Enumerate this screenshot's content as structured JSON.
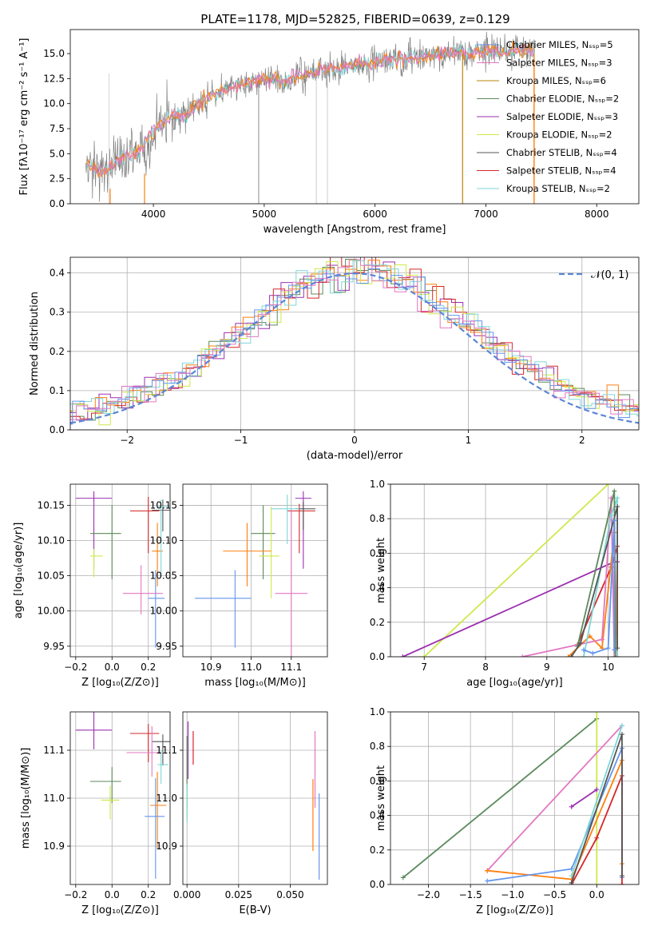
{
  "figure": {
    "title": "PLATE=1178, MJD=52825, FIBERID=0639, z=0.129",
    "colors": [
      "#6495ed",
      "#ff7f0e",
      "#5c8a5c",
      "#d62728",
      "#9b30b0",
      "#8c564b",
      "#e377c2",
      "#555555",
      "#cde94a",
      "#7fd6d6"
    ]
  },
  "chart_data": [
    {
      "id": "spectrum",
      "type": "line",
      "xlabel": "wavelength [Angstrom, rest frame]",
      "ylabel": "Flux [fλ10⁻¹⁷ erg cm⁻² s⁻¹ A⁻¹]",
      "xlim": [
        3250,
        8380
      ],
      "ylim": [
        0,
        17.4
      ],
      "xticks": [
        "4000",
        "5000",
        "6000",
        "7000",
        "8000"
      ],
      "yticks": [
        "0.0",
        "2.5",
        "5.0",
        "7.5",
        "10.0",
        "12.5",
        "15.0"
      ],
      "legend_location": "upper right",
      "series": [
        {
          "name": "Chabrier MILES, Nₛₛₚ=5",
          "color": "#6495ed"
        },
        {
          "name": "Salpeter MILES, Nₛₛₚ=3",
          "color": "#e377c2"
        },
        {
          "name": "Kroupa MILES, Nₛₛₚ=6",
          "color": "#b8860b"
        },
        {
          "name": "Chabrier ELODIE, Nₛₛₚ=2",
          "color": "#5c8a5c"
        },
        {
          "name": "Salpeter ELODIE, Nₛₛₚ=3",
          "color": "#9b30b0"
        },
        {
          "name": "Kroupa ELODIE, Nₛₛₚ=2",
          "color": "#cde94a"
        },
        {
          "name": "Chabrier STELIB, Nₛₛₚ=4",
          "color": "#555555"
        },
        {
          "name": "Salpeter STELIB, Nₛₛₚ=4",
          "color": "#d62728"
        },
        {
          "name": "Kroupa STELIB, Nₛₛₚ=2",
          "color": "#7fd6d6"
        }
      ],
      "data_points": [
        [
          3400,
          3.8
        ],
        [
          3500,
          3.2
        ],
        [
          3600,
          3.4
        ],
        [
          3700,
          4.3
        ],
        [
          3800,
          4.9
        ],
        [
          3900,
          5.6
        ],
        [
          4000,
          7.4
        ],
        [
          4100,
          8.2
        ],
        [
          4200,
          9.0
        ],
        [
          4300,
          8.7
        ],
        [
          4400,
          10.0
        ],
        [
          4500,
          10.6
        ],
        [
          4600,
          11.2
        ],
        [
          4700,
          11.6
        ],
        [
          4800,
          11.9
        ],
        [
          4900,
          12.2
        ],
        [
          5000,
          12.4
        ],
        [
          5100,
          12.6
        ],
        [
          5200,
          12.3
        ],
        [
          5300,
          12.8
        ],
        [
          5400,
          13.0
        ],
        [
          5500,
          13.2
        ],
        [
          5600,
          13.5
        ],
        [
          5700,
          13.6
        ],
        [
          5800,
          13.8
        ],
        [
          5900,
          14.0
        ],
        [
          6000,
          14.2
        ],
        [
          6100,
          14.3
        ],
        [
          6200,
          14.4
        ],
        [
          6300,
          14.5
        ],
        [
          6400,
          14.6
        ],
        [
          6500,
          14.8
        ],
        [
          6600,
          15.0
        ],
        [
          6700,
          15.1
        ],
        [
          6800,
          15.0
        ],
        [
          6900,
          15.2
        ],
        [
          7000,
          15.2
        ],
        [
          7100,
          15.3
        ],
        [
          7200,
          15.1
        ],
        [
          7300,
          15.4
        ],
        [
          7400,
          15.3
        ]
      ]
    },
    {
      "id": "residuals",
      "type": "step",
      "xlabel": "(data-model)/error",
      "ylabel": "Normed distribution",
      "xlim": [
        -2.5,
        2.5
      ],
      "ylim": [
        0,
        0.44
      ],
      "xticks": [
        "−2",
        "−1",
        "0",
        "1",
        "2"
      ],
      "yticks": [
        "0.0",
        "0.1",
        "0.2",
        "0.3",
        "0.4"
      ],
      "legend": "𝒩(0, 1)"
    },
    {
      "id": "age-vs-Z",
      "type": "errorbar",
      "xlabel": "Z [log₁₀(Z/Z⊙)]",
      "ylabel": "age  [log₁₀(age/yr)]",
      "xlim": [
        -0.23,
        0.32
      ],
      "ylim": [
        9.935,
        10.18
      ],
      "xticks": [
        "−0.2",
        "0.0",
        "0.2"
      ],
      "yticks": [
        "9.95",
        "10.00",
        "10.05",
        "10.10",
        "10.15"
      ]
    },
    {
      "id": "age-vs-mass",
      "type": "errorbar",
      "xlabel": "mass [log₁₀(M/M⊙)]",
      "xlim": [
        10.83,
        11.19
      ],
      "ylim": [
        9.935,
        10.18
      ],
      "xticks": [
        "10.9",
        "11.0",
        "11.1"
      ],
      "yticks": [
        "9.95",
        "10.00",
        "10.05",
        "10.10",
        "10.15"
      ]
    },
    {
      "id": "weight-vs-age",
      "type": "line",
      "xlabel": "age  [log₁₀(age/yr)]",
      "ylabel": "mass weight",
      "xlim": [
        6.45,
        10.5
      ],
      "ylim": [
        0,
        1
      ],
      "xticks": [
        "7",
        "8",
        "9",
        "10"
      ],
      "yticks": [
        "0.0",
        "0.2",
        "0.4",
        "0.6",
        "0.8",
        "1.0"
      ]
    },
    {
      "id": "mass-vs-Z",
      "type": "errorbar",
      "xlabel": "Z [log₁₀(Z/Z⊙)]",
      "ylabel": "mass [log₁₀(M/M⊙)]",
      "xlim": [
        -0.23,
        0.32
      ],
      "ylim": [
        10.82,
        11.18
      ],
      "xticks": [
        "−0.2",
        "0.0",
        "0.2"
      ],
      "yticks": [
        "10.9",
        "11.0",
        "11.1"
      ]
    },
    {
      "id": "mass-vs-ebv",
      "type": "errorbar",
      "xlabel": "E(B-V)",
      "xlim": [
        -0.002,
        0.068
      ],
      "ylim": [
        10.82,
        11.18
      ],
      "xticks": [
        "0.000",
        "0.025",
        "0.050"
      ],
      "yticks": [
        "10.9",
        "11.0",
        "11.1"
      ]
    },
    {
      "id": "weight-vs-Z",
      "type": "line",
      "xlabel": "Z [log₁₀(Z/Z⊙)]",
      "ylabel": "mass weight",
      "xlim": [
        -2.45,
        0.5
      ],
      "ylim": [
        0,
        1
      ],
      "xticks": [
        "−2.0",
        "−1.5",
        "−1.0",
        "−0.5",
        "0.0"
      ],
      "yticks": [
        "0.0",
        "0.2",
        "0.4",
        "0.6",
        "0.8",
        "1.0"
      ]
    }
  ]
}
